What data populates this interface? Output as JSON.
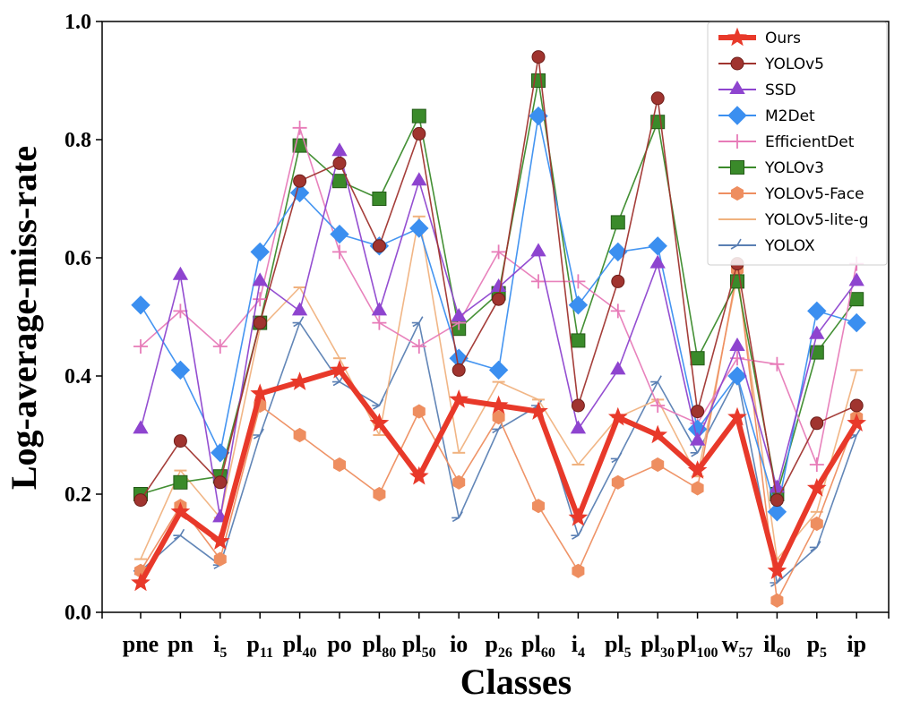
{
  "chart_data": {
    "type": "line",
    "title": "",
    "xlabel": "Classes",
    "ylabel": "Log-average-miss-rate",
    "ylim": [
      0,
      1.0
    ],
    "yticks": [
      "0.0",
      "0.2",
      "0.4",
      "0.6",
      "0.8",
      "1.0"
    ],
    "grid": false,
    "legend_position": "top-right",
    "categories": [
      {
        "base": "pne",
        "sub": ""
      },
      {
        "base": "pn",
        "sub": ""
      },
      {
        "base": "i",
        "sub": "5"
      },
      {
        "base": "p",
        "sub": "11"
      },
      {
        "base": "pl",
        "sub": "40"
      },
      {
        "base": "po",
        "sub": ""
      },
      {
        "base": "pl",
        "sub": "80"
      },
      {
        "base": "pl",
        "sub": "50"
      },
      {
        "base": "io",
        "sub": ""
      },
      {
        "base": "p",
        "sub": "26"
      },
      {
        "base": "pl",
        "sub": "60"
      },
      {
        "base": "i",
        "sub": "4"
      },
      {
        "base": "pl",
        "sub": "5"
      },
      {
        "base": "pl",
        "sub": "30"
      },
      {
        "base": "pl",
        "sub": "100"
      },
      {
        "base": "w",
        "sub": "57"
      },
      {
        "base": "il",
        "sub": "60"
      },
      {
        "base": "p",
        "sub": "5"
      },
      {
        "base": "ip",
        "sub": ""
      }
    ],
    "series": [
      {
        "name": "Ours",
        "color": "#e8392a",
        "marker": "star",
        "values": [
          0.05,
          0.17,
          0.12,
          0.37,
          0.39,
          0.41,
          0.32,
          0.23,
          0.36,
          0.35,
          0.34,
          0.16,
          0.33,
          0.3,
          0.24,
          0.33,
          0.07,
          0.21,
          0.32
        ]
      },
      {
        "name": "YOLOv5",
        "color": "#a0342f",
        "marker": "circle",
        "values": [
          0.19,
          0.29,
          0.22,
          0.49,
          0.73,
          0.76,
          0.62,
          0.81,
          0.41,
          0.53,
          0.94,
          0.35,
          0.56,
          0.87,
          0.34,
          0.59,
          0.19,
          0.32,
          0.35
        ]
      },
      {
        "name": "SSD",
        "color": "#8e44cf",
        "marker": "triangle",
        "values": [
          0.31,
          0.57,
          0.16,
          0.56,
          0.51,
          0.78,
          0.51,
          0.73,
          0.5,
          0.55,
          0.61,
          0.31,
          0.41,
          0.59,
          0.29,
          0.45,
          0.21,
          0.47,
          0.56
        ]
      },
      {
        "name": "M2Det",
        "color": "#3b8ff0",
        "marker": "diamond",
        "values": [
          0.52,
          0.41,
          0.27,
          0.61,
          0.71,
          0.64,
          0.62,
          0.65,
          0.43,
          0.41,
          0.84,
          0.52,
          0.61,
          0.62,
          0.31,
          0.4,
          0.17,
          0.51,
          0.49
        ]
      },
      {
        "name": "EfficientDet",
        "color": "#e77bb8",
        "marker": "plus",
        "values": [
          0.45,
          0.51,
          0.45,
          0.53,
          0.82,
          0.61,
          0.49,
          0.45,
          0.49,
          0.61,
          0.56,
          0.56,
          0.51,
          0.35,
          0.32,
          0.43,
          0.42,
          0.25,
          0.59
        ]
      },
      {
        "name": "YOLOv3",
        "color": "#3a8a2a",
        "marker": "square",
        "values": [
          0.2,
          0.22,
          0.23,
          0.49,
          0.79,
          0.73,
          0.7,
          0.84,
          0.48,
          0.54,
          0.9,
          0.46,
          0.66,
          0.83,
          0.43,
          0.56,
          0.2,
          0.44,
          0.53
        ]
      },
      {
        "name": "YOLOv5-Face",
        "color": "#ee8e60",
        "marker": "hexagon",
        "values": [
          0.07,
          0.18,
          0.09,
          0.35,
          0.3,
          0.25,
          0.2,
          0.34,
          0.22,
          0.33,
          0.18,
          0.07,
          0.22,
          0.25,
          0.21,
          0.58,
          0.02,
          0.15,
          0.33
        ]
      },
      {
        "name": "YOLOv5-lite-g",
        "color": "#f0b27f",
        "marker": "hline",
        "values": [
          0.09,
          0.24,
          0.16,
          0.48,
          0.55,
          0.43,
          0.3,
          0.67,
          0.27,
          0.39,
          0.36,
          0.25,
          0.33,
          0.36,
          0.23,
          0.57,
          0.09,
          0.17,
          0.41
        ]
      },
      {
        "name": "YOLOX",
        "color": "#5a7fb3",
        "marker": "tri_left",
        "values": [
          0.07,
          0.13,
          0.08,
          0.3,
          0.49,
          0.39,
          0.35,
          0.49,
          0.16,
          0.31,
          0.35,
          0.13,
          0.26,
          0.39,
          0.27,
          0.4,
          0.05,
          0.11,
          0.3
        ]
      }
    ]
  }
}
